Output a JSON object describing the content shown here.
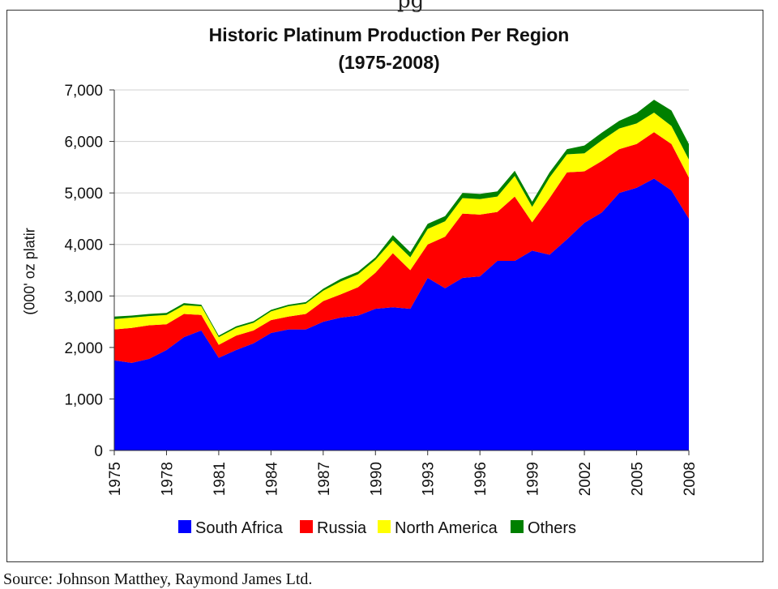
{
  "page": {
    "top_fragment": "pg",
    "source_text": "Source: Johnson Matthey, Raymond James Ltd."
  },
  "chart_data": {
    "type": "area",
    "stacked": true,
    "title": "Historic Platinum Production Per Region",
    "subtitle": "(1975-2008)",
    "ylabel": "(000' oz platir",
    "xlabel": "",
    "ylim": [
      0,
      7000
    ],
    "yticks": [
      "0",
      "1,000",
      "2,000",
      "3,000",
      "4,000",
      "5,000",
      "6,000",
      "7,000"
    ],
    "yticks_values": [
      0,
      1000,
      2000,
      3000,
      4000,
      5000,
      6000,
      7000
    ],
    "xticks": [
      "1975",
      "1978",
      "1981",
      "1984",
      "1987",
      "1990",
      "1993",
      "1996",
      "1999",
      "2002",
      "2005",
      "2008"
    ],
    "grid": true,
    "legend_position": "bottom",
    "x": [
      1975,
      1976,
      1977,
      1978,
      1979,
      1980,
      1981,
      1982,
      1983,
      1984,
      1985,
      1986,
      1987,
      1988,
      1989,
      1990,
      1991,
      1992,
      1993,
      1994,
      1995,
      1996,
      1997,
      1998,
      1999,
      2000,
      2001,
      2002,
      2003,
      2004,
      2005,
      2006,
      2007,
      2008
    ],
    "series": [
      {
        "name": "South Africa",
        "color": "#0000FF",
        "values": [
          1750,
          1700,
          1780,
          1950,
          2200,
          2330,
          1800,
          1950,
          2080,
          2280,
          2350,
          2350,
          2500,
          2580,
          2620,
          2750,
          2780,
          2750,
          3350,
          3150,
          3350,
          3380,
          3680,
          3680,
          3880,
          3800,
          4100,
          4420,
          4620,
          5000,
          5100,
          5280,
          5050,
          4500
        ]
      },
      {
        "name": "Russia",
        "color": "#FF0000",
        "values": [
          600,
          680,
          650,
          500,
          450,
          300,
          250,
          280,
          250,
          250,
          250,
          300,
          400,
          450,
          550,
          700,
          1050,
          750,
          650,
          1000,
          1250,
          1200,
          950,
          1250,
          550,
          1100,
          1300,
          1000,
          1000,
          850,
          850,
          900,
          900,
          800
        ]
      },
      {
        "name": "North America",
        "color": "#FFFF00",
        "values": [
          200,
          200,
          180,
          180,
          170,
          170,
          150,
          150,
          150,
          170,
          200,
          200,
          200,
          250,
          250,
          250,
          250,
          250,
          300,
          300,
          300,
          300,
          300,
          400,
          300,
          400,
          350,
          350,
          400,
          400,
          400,
          380,
          350,
          350
        ]
      },
      {
        "name": "Others",
        "color": "#008000",
        "values": [
          50,
          40,
          40,
          40,
          40,
          30,
          30,
          30,
          30,
          30,
          30,
          30,
          40,
          50,
          50,
          50,
          100,
          100,
          100,
          100,
          100,
          100,
          100,
          100,
          100,
          100,
          100,
          150,
          150,
          150,
          200,
          250,
          300,
          300
        ]
      }
    ]
  }
}
